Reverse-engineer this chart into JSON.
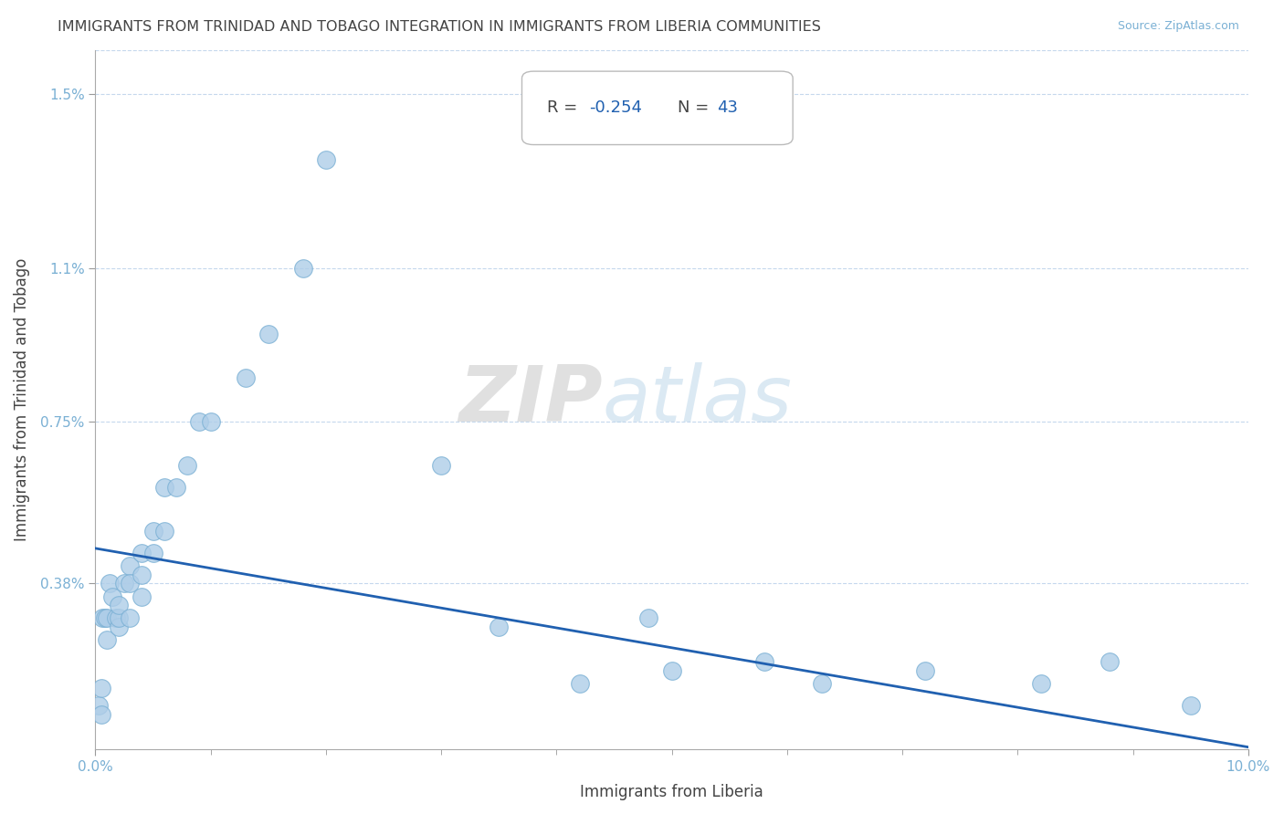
{
  "title": "IMMIGRANTS FROM TRINIDAD AND TOBAGO INTEGRATION IN IMMIGRANTS FROM LIBERIA COMMUNITIES",
  "source": "Source: ZipAtlas.com",
  "xlabel": "Immigrants from Liberia",
  "ylabel": "Immigrants from Trinidad and Tobago",
  "R_label": "R = ",
  "R_value": "-0.254",
  "N_label": "  N = ",
  "N_value": "43",
  "xlim": [
    0.0,
    0.1
  ],
  "ylim": [
    0.0,
    0.016
  ],
  "xtick_positions": [
    0.0,
    0.1
  ],
  "xtick_labels": [
    "0.0%",
    "10.0%"
  ],
  "ytick_positions": [
    0.0038,
    0.0075,
    0.011,
    0.015
  ],
  "ytick_labels": [
    "0.38%",
    "0.75%",
    "1.1%",
    "1.5%"
  ],
  "scatter_color": "#aecde8",
  "scatter_edge_color": "#7ab0d4",
  "line_color": "#2060b0",
  "line_y_start": 0.0046,
  "line_y_end": 5e-05,
  "watermark_zip": "ZIP",
  "watermark_atlas": "atlas",
  "title_color": "#444444",
  "title_fontsize": 11.5,
  "source_color": "#7ab0d4",
  "axis_label_color": "#444444",
  "tick_label_color": "#7ab0d4",
  "background_color": "#ffffff",
  "grid_color": "#c5d8ed",
  "box_edge_color": "#bbbbbb",
  "scatter_x": [
    0.0003,
    0.0005,
    0.0005,
    0.0006,
    0.0008,
    0.001,
    0.001,
    0.0012,
    0.0015,
    0.0018,
    0.002,
    0.002,
    0.002,
    0.0025,
    0.003,
    0.003,
    0.003,
    0.004,
    0.004,
    0.004,
    0.005,
    0.005,
    0.006,
    0.006,
    0.007,
    0.008,
    0.009,
    0.01,
    0.013,
    0.015,
    0.018,
    0.02,
    0.03,
    0.035,
    0.042,
    0.048,
    0.05,
    0.058,
    0.063,
    0.072,
    0.082,
    0.088,
    0.095
  ],
  "scatter_y": [
    0.001,
    0.0008,
    0.0014,
    0.003,
    0.003,
    0.003,
    0.0025,
    0.0038,
    0.0035,
    0.003,
    0.0028,
    0.003,
    0.0033,
    0.0038,
    0.0042,
    0.0038,
    0.003,
    0.004,
    0.0045,
    0.0035,
    0.0045,
    0.005,
    0.005,
    0.006,
    0.006,
    0.0065,
    0.0075,
    0.0075,
    0.0085,
    0.0095,
    0.011,
    0.0135,
    0.0065,
    0.0028,
    0.0015,
    0.003,
    0.0018,
    0.002,
    0.0015,
    0.0018,
    0.0015,
    0.002,
    0.001
  ]
}
